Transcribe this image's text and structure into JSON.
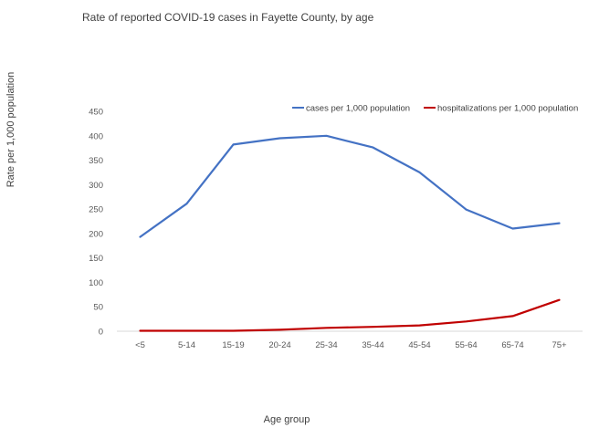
{
  "chart_data": {
    "type": "line",
    "title": "Rate of reported COVID-19 cases in Fayette County, by age",
    "xlabel": "Age group",
    "ylabel": "Rate per 1,000 population",
    "categories": [
      "<5",
      "5-14",
      "15-19",
      "20-24",
      "25-34",
      "35-44",
      "45-54",
      "55-64",
      "65-74",
      "75+"
    ],
    "ylim": [
      0,
      450
    ],
    "yticks": [
      0,
      50,
      100,
      150,
      200,
      250,
      300,
      350,
      400,
      450
    ],
    "grid": false,
    "legend_position": "top-right",
    "series": [
      {
        "name": "cases per 1,000 population",
        "color": "#4472c4",
        "values": [
          193,
          261,
          382,
          395,
          400,
          376,
          325,
          249,
          210,
          221
        ]
      },
      {
        "name": "hospitalizations per 1,000 population",
        "color": "#c00000",
        "values": [
          1,
          1,
          1,
          3,
          7,
          9,
          12,
          20,
          31,
          64
        ]
      }
    ]
  }
}
